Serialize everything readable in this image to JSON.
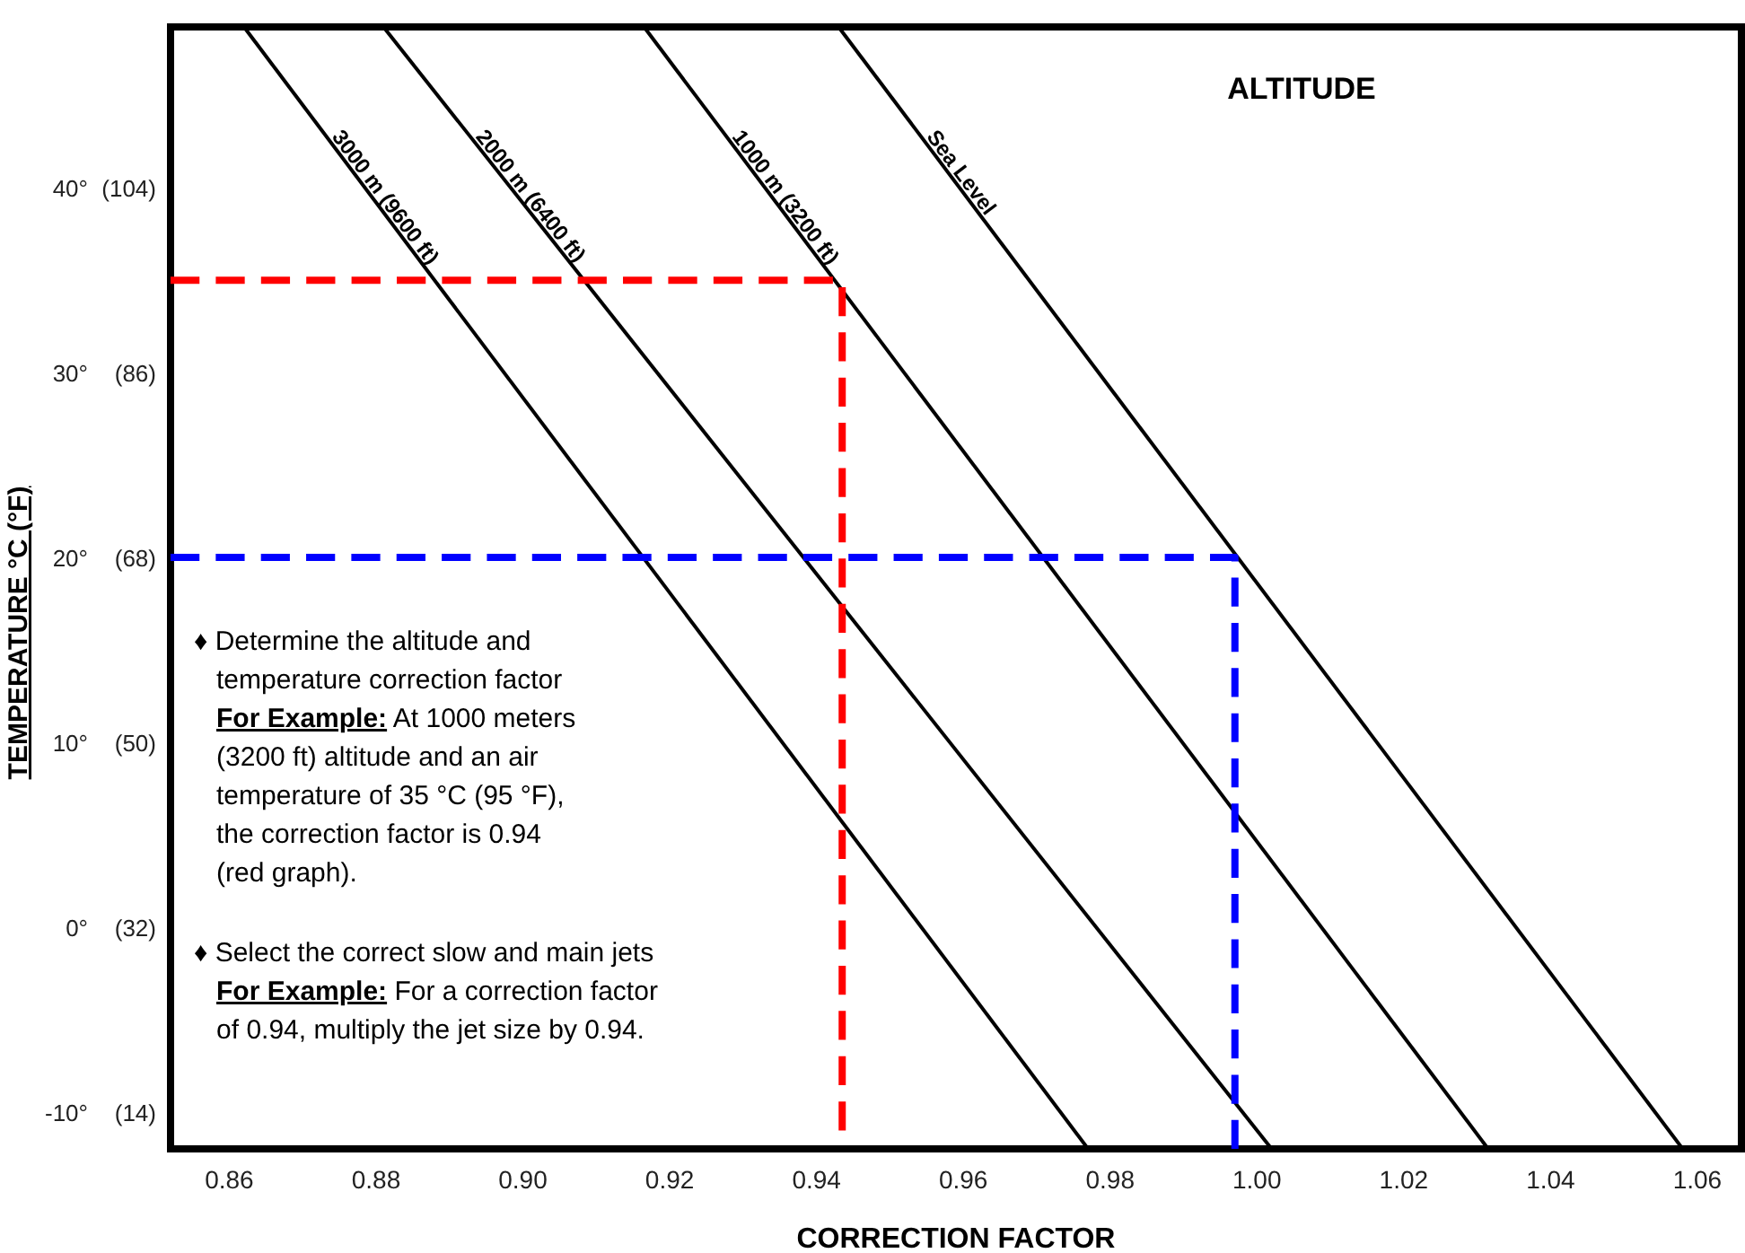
{
  "chart_data": {
    "type": "line",
    "title": "ALTITUDE",
    "xlabel": "CORRECTION FACTOR",
    "ylabel": "TEMPERATURE °C (°F)",
    "xlim": [
      0.852,
      1.066
    ],
    "ylim": [
      -12,
      48.7
    ],
    "xticks": [
      {
        "value": 0.86,
        "label": "0.86"
      },
      {
        "value": 0.88,
        "label": "0.88"
      },
      {
        "value": 0.9,
        "label": "0.90"
      },
      {
        "value": 0.92,
        "label": "0.92"
      },
      {
        "value": 0.94,
        "label": "0.94"
      },
      {
        "value": 0.96,
        "label": "0.96"
      },
      {
        "value": 0.98,
        "label": "0.98"
      },
      {
        "value": 1.0,
        "label": "1.00"
      },
      {
        "value": 1.02,
        "label": "1.02"
      },
      {
        "value": 1.04,
        "label": "1.04"
      },
      {
        "value": 1.06,
        "label": "1.06"
      }
    ],
    "yticks": [
      {
        "value": 40,
        "label": "40°"
      },
      {
        "value": 30,
        "label": "30°"
      },
      {
        "value": 20,
        "label": "20°"
      },
      {
        "value": 10,
        "label": "10°"
      },
      {
        "value": 0,
        "label": "0°"
      },
      {
        "value": -10,
        "label": "-10°"
      }
    ],
    "y2lim": [
      10.4,
      119.66
    ],
    "y2ticks": [
      {
        "value": 104,
        "label": "(104)"
      },
      {
        "value": 86,
        "label": "(86)"
      },
      {
        "value": 68,
        "label": "(68)"
      },
      {
        "value": 50,
        "label": "(50)"
      },
      {
        "value": 32,
        "label": "(32)"
      },
      {
        "value": 14,
        "label": "(14)"
      }
    ],
    "tick_labels": true,
    "grid": false,
    "marker": "none",
    "series": [
      {
        "name": "3000 m (9600 ft)",
        "color": "#000000",
        "x": [
          0.862,
          0.977
        ],
        "values": [
          48.7,
          -12
        ],
        "line_style": "solid"
      },
      {
        "name": "2000 m (6400 ft)",
        "color": "#000000",
        "x": [
          0.881,
          1.002
        ],
        "values": [
          48.7,
          -12
        ],
        "line_style": "solid"
      },
      {
        "name": "1000 m (3200 ft)",
        "color": "#000000",
        "x": [
          0.9165,
          1.0315
        ],
        "values": [
          48.7,
          -12
        ],
        "line_style": "solid"
      },
      {
        "name": "Sea Level",
        "color": "#000000",
        "x": [
          0.943,
          1.058
        ],
        "values": [
          48.7,
          -12
        ],
        "line_style": "solid"
      },
      {
        "color": "#ff0000",
        "x": [
          0.852,
          0.9435,
          0.9435
        ],
        "values": [
          35,
          35,
          -11
        ],
        "line_style": "dashed"
      },
      {
        "color": "#0000ff",
        "x": [
          0.852,
          0.997,
          0.997
        ],
        "values": [
          20,
          20,
          -12
        ],
        "line_style": "dashed"
      }
    ],
    "annotations": [
      "♦ Determine the altitude and\n   temperature correction factor\n   For Example: At 1000 meters\n   (3200 ft) altitude and an air\n   temperature of 35 °C (95 °F),\n   the correction factor is 0.94\n   (red graph).",
      "♦ Select the correct slow and main jets\n   For Example: For a correction factor\n   of 0.94, multiply the jet size by 0.94."
    ]
  }
}
